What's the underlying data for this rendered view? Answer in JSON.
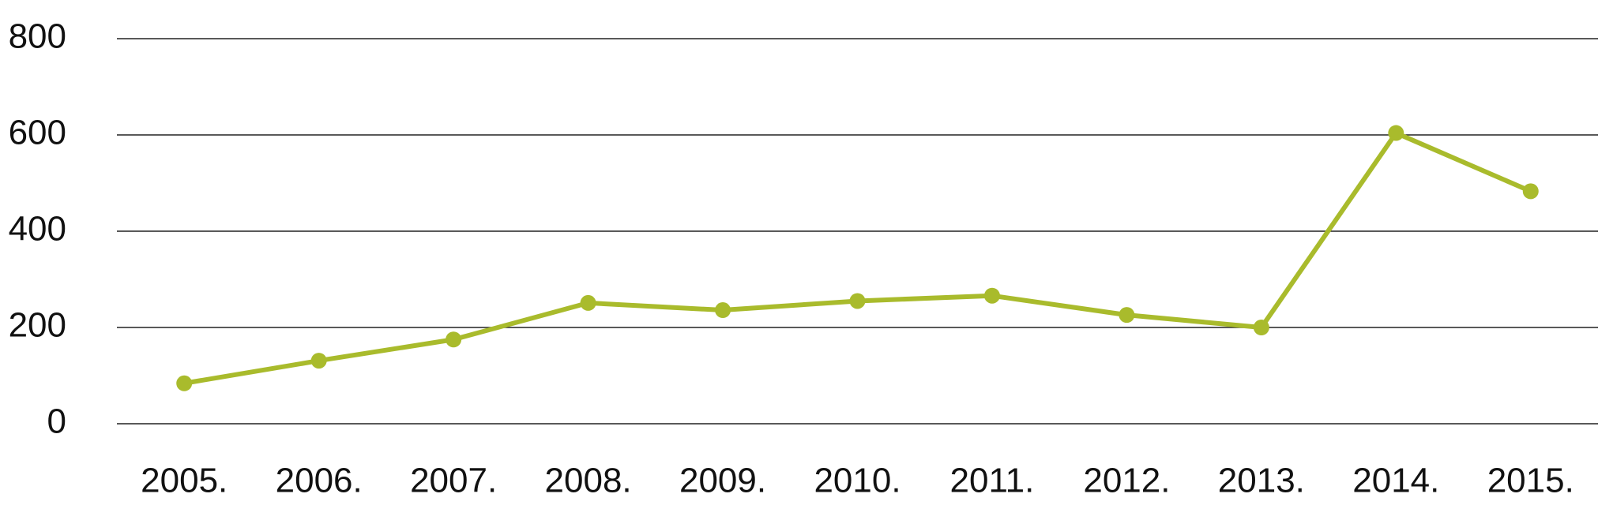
{
  "chart_data": {
    "type": "line",
    "categories": [
      "2005.",
      "2006.",
      "2007.",
      "2008.",
      "2009.",
      "2010.",
      "2011.",
      "2012.",
      "2013.",
      "2014.",
      "2015."
    ],
    "values": [
      84,
      131,
      175,
      251,
      236,
      255,
      266,
      226,
      200,
      604,
      483
    ],
    "color": "#a9bb2c",
    "ylim": [
      0,
      800
    ],
    "yticks": [
      0,
      200,
      400,
      600,
      800
    ],
    "grid": true
  }
}
